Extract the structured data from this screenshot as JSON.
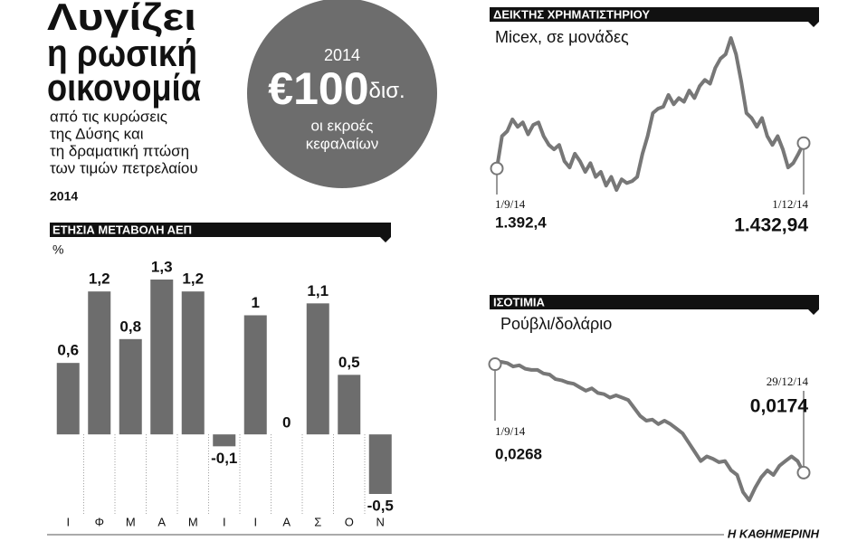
{
  "header": {
    "title": [
      "Λυγίζει",
      "η ρωσική",
      "οικονομία"
    ],
    "subtitle": [
      "από τις κυρώσεις",
      "της Δύσης και",
      "τη δραματική πτώση",
      "των τιμών πετρελαίου"
    ],
    "year": "2014"
  },
  "callout": {
    "year": "2014",
    "amount": "€100",
    "unit": "δισ.",
    "caption": [
      "οι εκροές",
      "κεφαλαίων"
    ]
  },
  "footer": {
    "source": "Η ΚΑΘΗΜΕΡΙΝΗ"
  },
  "chart_data": [
    {
      "type": "bar",
      "title": "ΕΤΗΣΙΑ ΜΕΤΑΒΟΛΗ ΑΕΠ",
      "unit": "%",
      "categories": [
        "Ι",
        "Φ",
        "Μ",
        "Α",
        "Μ",
        "Ι",
        "Ι",
        "Α",
        "Σ",
        "Ο",
        "Ν"
      ],
      "values": [
        0.6,
        1.2,
        0.8,
        1.3,
        1.2,
        -0.1,
        1,
        0,
        1.1,
        0.5,
        -0.5
      ],
      "value_labels": [
        "0,6",
        "1,2",
        "0,8",
        "1,3",
        "1,2",
        "-0,1",
        "1",
        "0",
        "1,1",
        "0,5",
        "-0,5"
      ],
      "color": "#6d6d6d"
    },
    {
      "type": "line",
      "title": "ΔΕΙΚΤΗΣ ΧΡΗΜΑΤΙΣΤΗΡΙΟΥ",
      "subtitle": "Micex, σε μονάδες",
      "x": [
        "1/9/14",
        null,
        null,
        null,
        null,
        null,
        null,
        null,
        null,
        null,
        null,
        null,
        null,
        null,
        null,
        null,
        null,
        null,
        null,
        null,
        null,
        null,
        null,
        null,
        null,
        null,
        null,
        null,
        null,
        null,
        null,
        null,
        null,
        null,
        null,
        null,
        null,
        null,
        null,
        null,
        null,
        null,
        null,
        null,
        null,
        null,
        null,
        null,
        null,
        null,
        null,
        null,
        null,
        null,
        null,
        null,
        null,
        null,
        null,
        "1/12/14"
      ],
      "series": [
        {
          "color": "#777777",
          "values": [
            1392.4,
            1444,
            1452,
            1471,
            1459,
            1466,
            1447,
            1462,
            1466,
            1444,
            1430,
            1423,
            1430,
            1404,
            1394,
            1416,
            1404,
            1387,
            1401,
            1379,
            1387,
            1365,
            1379,
            1358,
            1375,
            1369,
            1372,
            1379,
            1416,
            1444,
            1481,
            1488,
            1491,
            1510,
            1495,
            1505,
            1499,
            1517,
            1505,
            1524,
            1534,
            1528,
            1553,
            1568,
            1575,
            1601,
            1575,
            1531,
            1481,
            1473,
            1459,
            1473,
            1444,
            1430,
            1444,
            1423,
            1394,
            1401,
            1416,
            1432.94
          ],
          "value_labels": [
            "1.392,4",
            null,
            null,
            null,
            null,
            null,
            null,
            null,
            null,
            null,
            null,
            null,
            null,
            null,
            null,
            null,
            null,
            null,
            null,
            null,
            null,
            null,
            null,
            null,
            null,
            null,
            null,
            null,
            null,
            null,
            null,
            null,
            null,
            null,
            null,
            null,
            null,
            null,
            null,
            null,
            null,
            null,
            null,
            null,
            null,
            null,
            null,
            null,
            null,
            null,
            null,
            null,
            null,
            null,
            null,
            null,
            null,
            null,
            null,
            "1.432,94"
          ]
        }
      ]
    },
    {
      "type": "line",
      "title": "ΙΣΟΤΙΜΙΑ",
      "subtitle": "Ρούβλι/δολάριο",
      "x": [
        "1/9/14",
        null,
        null,
        null,
        null,
        null,
        null,
        null,
        null,
        null,
        null,
        null,
        null,
        null,
        null,
        null,
        null,
        null,
        null,
        null,
        null,
        null,
        null,
        null,
        null,
        null,
        null,
        null,
        null,
        null,
        null,
        null,
        null,
        null,
        null,
        null,
        null,
        null,
        null,
        null,
        null,
        null,
        null,
        null,
        null,
        null,
        null,
        null,
        null,
        null,
        null,
        "29/12/14"
      ],
      "series": [
        {
          "color": "#777777",
          "values": [
            0.0268,
            0.027,
            0.0269,
            0.0266,
            0.0267,
            0.0264,
            0.0263,
            0.0263,
            0.026,
            0.0259,
            0.0255,
            0.0254,
            0.0252,
            0.0251,
            0.0248,
            0.0245,
            0.0247,
            0.0243,
            0.0242,
            0.0239,
            0.0241,
            0.0239,
            0.0237,
            0.023,
            0.0223,
            0.0219,
            0.022,
            0.0216,
            0.0219,
            0.0216,
            0.0212,
            0.0208,
            0.02,
            0.0192,
            0.0184,
            0.0188,
            0.0186,
            0.0183,
            0.0184,
            0.0176,
            0.0172,
            0.0157,
            0.015,
            0.0161,
            0.017,
            0.0176,
            0.0172,
            0.018,
            0.0184,
            0.0188,
            0.0184,
            0.0174
          ],
          "value_labels": [
            "0,0268",
            null,
            null,
            null,
            null,
            null,
            null,
            null,
            null,
            null,
            null,
            null,
            null,
            null,
            null,
            null,
            null,
            null,
            null,
            null,
            null,
            null,
            null,
            null,
            null,
            null,
            null,
            null,
            null,
            null,
            null,
            null,
            null,
            null,
            null,
            null,
            null,
            null,
            null,
            null,
            null,
            null,
            null,
            null,
            null,
            null,
            null,
            null,
            null,
            null,
            null,
            "0,0174"
          ]
        }
      ]
    }
  ]
}
